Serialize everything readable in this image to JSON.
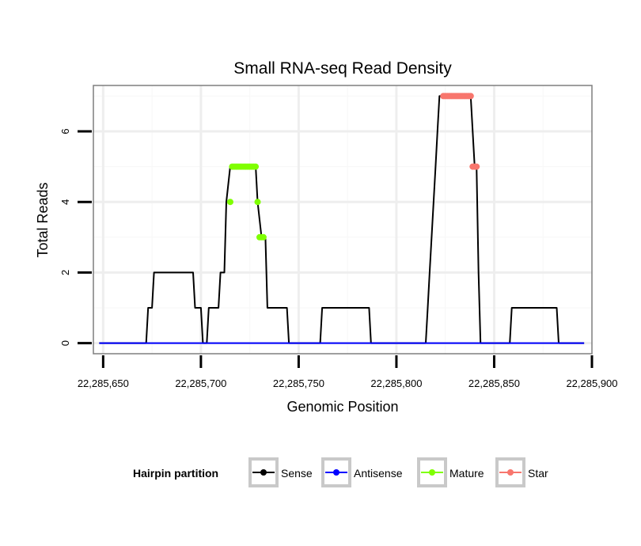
{
  "chart_data": {
    "type": "line",
    "title": "Small RNA-seq Read Density",
    "xlabel": "Genomic Position",
    "ylabel": "Total Reads",
    "xlim": [
      22285645,
      22285900
    ],
    "ylim": [
      -0.3,
      7.3
    ],
    "x_ticks": [
      22285650,
      22285700,
      22285750,
      22285800,
      22285850,
      22285900
    ],
    "x_tick_labels": [
      "22,285,650",
      "22,285,700",
      "22,285,750",
      "22,285,800",
      "22,285,850",
      "22,285,900"
    ],
    "y_ticks": [
      0,
      2,
      4,
      6
    ],
    "y_tick_labels": [
      "0",
      "2",
      "4",
      "6"
    ],
    "grid": true,
    "legend": {
      "title": "Hairpin partition",
      "placement": "bottom",
      "entries": [
        {
          "name": "Sense",
          "color": "#000000"
        },
        {
          "name": "Antisense",
          "color": "#0000ff"
        },
        {
          "name": "Mature",
          "color": "#7fff00"
        },
        {
          "name": "Star",
          "color": "#f8766d"
        }
      ]
    },
    "series": [
      {
        "name": "Sense",
        "color": "#000000",
        "marker": false,
        "x": [
          22285648,
          22285672,
          22285673,
          22285675,
          22285676,
          22285696,
          22285697,
          22285700,
          22285701,
          22285703,
          22285704,
          22285709,
          22285710,
          22285712,
          22285713,
          22285715,
          22285716,
          22285728,
          22285729,
          22285731,
          22285732,
          22285733,
          22285734,
          22285744,
          22285745,
          22285761,
          22285762,
          22285786,
          22285787,
          22285815,
          22285816,
          22285817,
          22285818,
          22285819,
          22285820,
          22285821,
          22285822,
          22285823,
          22285824,
          22285837,
          22285838,
          22285840,
          22285841,
          22285842,
          22285843,
          22285844,
          22285845,
          22285858,
          22285859,
          22285882,
          22285883,
          22285896
        ],
        "y": [
          0,
          0,
          1,
          1,
          2,
          2,
          1,
          1,
          0,
          0,
          1,
          1,
          2,
          2,
          4,
          5,
          5,
          5,
          4,
          3,
          3,
          3,
          1,
          1,
          0,
          0,
          1,
          1,
          0,
          0,
          1,
          2,
          3,
          4,
          5,
          6,
          7,
          7,
          7,
          7,
          7,
          5,
          5,
          2,
          0,
          0,
          0,
          0,
          1,
          1,
          0,
          0
        ]
      },
      {
        "name": "Antisense",
        "color": "#0000ff",
        "marker": false,
        "x": [
          22285648,
          22285896
        ],
        "y": [
          0,
          0
        ]
      },
      {
        "name": "Mature",
        "color": "#7fff00",
        "marker": true,
        "x": [
          22285715,
          22285716,
          22285717,
          22285718,
          22285719,
          22285720,
          22285721,
          22285722,
          22285723,
          22285724,
          22285725,
          22285726,
          22285727,
          22285728,
          22285729,
          22285730,
          22285731,
          22285732
        ],
        "y": [
          4,
          5,
          5,
          5,
          5,
          5,
          5,
          5,
          5,
          5,
          5,
          5,
          5,
          5,
          4,
          3,
          3,
          3
        ]
      },
      {
        "name": "Star",
        "color": "#f8766d",
        "marker": true,
        "x": [
          22285824,
          22285825,
          22285826,
          22285827,
          22285828,
          22285829,
          22285830,
          22285831,
          22285832,
          22285833,
          22285834,
          22285835,
          22285836,
          22285837,
          22285838,
          22285839,
          22285840,
          22285841
        ],
        "y": [
          7,
          7,
          7,
          7,
          7,
          7,
          7,
          7,
          7,
          7,
          7,
          7,
          7,
          7,
          7,
          5,
          5,
          5
        ]
      }
    ]
  }
}
